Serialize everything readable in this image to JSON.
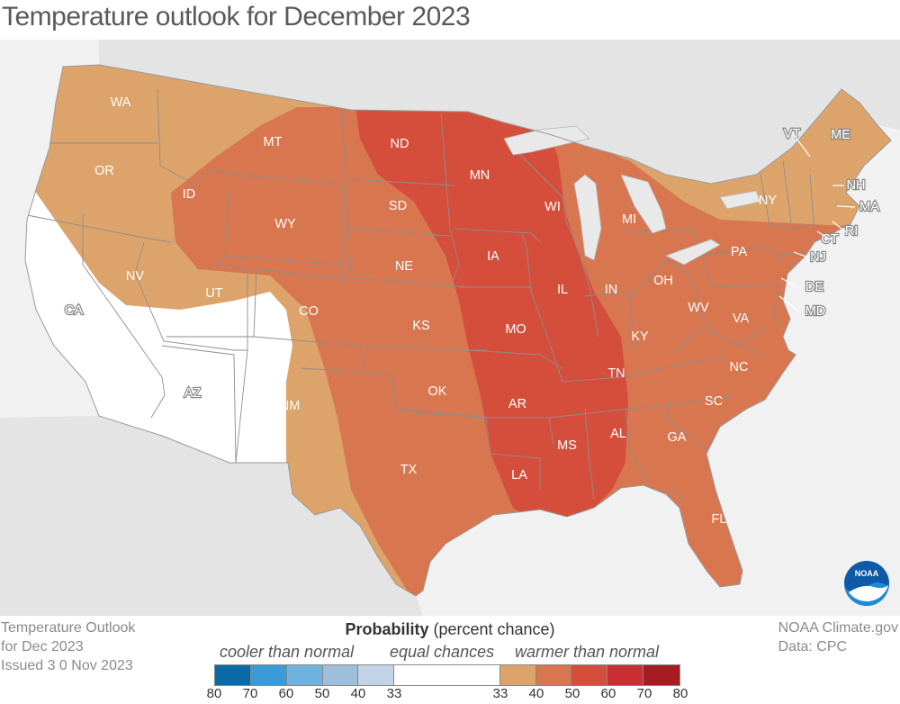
{
  "title": "Temperature outlook for December 2023",
  "outlook_info": {
    "line1": "Temperature Outlook",
    "line2": "for Dec 2023",
    "line3": "Issued 3 0 Nov 2023"
  },
  "credit": {
    "line1": "NOAA Climate.gov",
    "line2": "Data: CPC"
  },
  "legend": {
    "title_bold": "Probability",
    "title_rest": " (percent chance)",
    "cooler_label": "cooler than normal",
    "equal_label": "equal chances",
    "warmer_label": "warmer than normal",
    "ticks": [
      "80",
      "70",
      "60",
      "50",
      "40",
      "33",
      "33",
      "40",
      "50",
      "60",
      "70",
      "80"
    ],
    "colors": {
      "cool_80": "#0a6aa5",
      "cool_70": "#3a9bd6",
      "cool_60": "#6fb2df",
      "cool_50": "#9dbfdc",
      "cool_40": "#c2d3e8",
      "equal": "#ffffff",
      "warm_40": "#dca36b",
      "warm_50": "#d8764f",
      "warm_60": "#d54e3c",
      "warm_70": "#c92f31",
      "warm_80": "#a51c21"
    }
  },
  "states": [
    "WA",
    "OR",
    "CA",
    "NV",
    "ID",
    "MT",
    "WY",
    "UT",
    "CO",
    "AZ",
    "NM",
    "ND",
    "SD",
    "NE",
    "KS",
    "OK",
    "TX",
    "MN",
    "IA",
    "MO",
    "AR",
    "LA",
    "WI",
    "IL",
    "MS",
    "AL",
    "TN",
    "KY",
    "IN",
    "MI",
    "OH",
    "GA",
    "FL",
    "SC",
    "NC",
    "VA",
    "WV",
    "PA",
    "NY",
    "VT",
    "ME",
    "NH",
    "MA",
    "CT",
    "RI",
    "NJ",
    "DE",
    "MD"
  ],
  "logo_text": "NOAA"
}
